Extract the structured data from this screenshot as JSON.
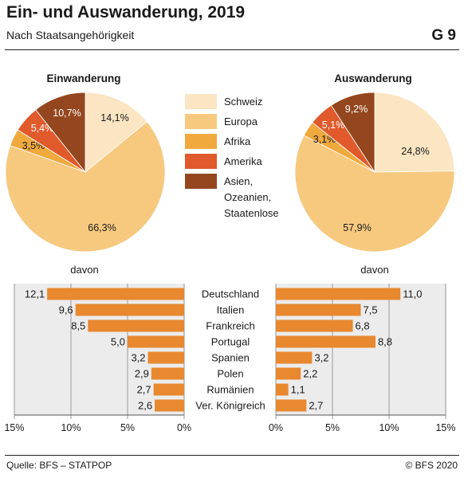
{
  "header": {
    "title": "Ein- und Auswanderung, 2019",
    "subtitle": "Nach Staatsangehörigkeit",
    "figure_code": "G 9"
  },
  "footer": {
    "source": "Quelle: BFS – STATPOP",
    "copyright": "© BFS 2020"
  },
  "colors": {
    "Schweiz": "#fbe5c2",
    "Europa": "#f6c97f",
    "Afrika": "#f0a93d",
    "Amerika": "#e05a2b",
    "Asien": "#94471e",
    "bar": "#e8882f",
    "panel_bg": "#ececec",
    "grid": "#9a9a9a"
  },
  "chart_data": [
    {
      "type": "pie",
      "title": "Einwanderung",
      "slices": [
        {
          "category": "Schweiz",
          "value": 14.1,
          "label": "14,1%"
        },
        {
          "category": "Europa",
          "value": 66.3,
          "label": "66,3%"
        },
        {
          "category": "Afrika",
          "value": 3.5,
          "label": "3,5%"
        },
        {
          "category": "Amerika",
          "value": 5.4,
          "label": "5,4%"
        },
        {
          "category": "Asien",
          "value": 10.7,
          "label": "10,7%"
        }
      ]
    },
    {
      "type": "pie",
      "title": "Auswanderung",
      "slices": [
        {
          "category": "Schweiz",
          "value": 24.8,
          "label": "24,8%"
        },
        {
          "category": "Europa",
          "value": 57.9,
          "label": "57,9%"
        },
        {
          "category": "Afrika",
          "value": 3.1,
          "label": "3,1%"
        },
        {
          "category": "Amerika",
          "value": 5.1,
          "label": "5,1%"
        },
        {
          "category": "Asien",
          "value": 9.2,
          "label": "9,2%"
        }
      ]
    },
    {
      "type": "bar",
      "orientation": "horizontal",
      "legend": {
        "placement": "center",
        "entries": [
          {
            "category": "Schweiz",
            "label": "Schweiz"
          },
          {
            "category": "Europa",
            "label": "Europa"
          },
          {
            "category": "Afrika",
            "label": "Afrika"
          },
          {
            "category": "Amerika",
            "label": "Amerika"
          },
          {
            "category": "Asien",
            "label": "Asien,\nOzeanien,\nStaatenlose"
          }
        ]
      },
      "caption_left": "davon",
      "caption_right": "davon",
      "categories": [
        "Deutschland",
        "Italien",
        "Frankreich",
        "Portugal",
        "Spanien",
        "Polen",
        "Rumänien",
        "Ver. Königreich"
      ],
      "series": [
        {
          "values": [
            12.1,
            9.6,
            8.5,
            5.0,
            3.2,
            2.9,
            2.7,
            2.6
          ],
          "labels": [
            "12,1",
            "9,6",
            "8,5",
            "5,0",
            "3,2",
            "2,9",
            "2,7",
            "2,6"
          ]
        },
        {
          "values": [
            11.0,
            7.5,
            6.8,
            8.8,
            3.2,
            2.2,
            1.1,
            2.7
          ],
          "labels": [
            "11,0",
            "7,5",
            "6,8",
            "8,8",
            "3,2",
            "2,2",
            "1,1",
            "2,7"
          ]
        }
      ],
      "xlim": [
        0,
        15
      ],
      "ticks": [
        15,
        10,
        5,
        0
      ],
      "tick_labels_left": [
        "15%",
        "10%",
        "5%",
        "0%"
      ],
      "tick_labels_right": [
        "0%",
        "5%",
        "10%",
        "15%"
      ],
      "grid": true
    }
  ]
}
